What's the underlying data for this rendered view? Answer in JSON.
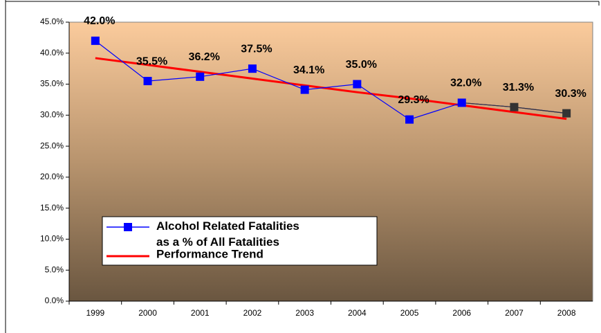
{
  "chart_data": {
    "type": "line",
    "categories": [
      "1999",
      "2000",
      "2001",
      "2002",
      "2003",
      "2004",
      "2005",
      "2006",
      "2007",
      "2008"
    ],
    "series": [
      {
        "name": "Alcohol Related Fatalities as a % of All Fatalities",
        "color": "#0000ff",
        "point_colors": [
          "#0000ff",
          "#0000ff",
          "#0000ff",
          "#0000ff",
          "#0000ff",
          "#0000ff",
          "#0000ff",
          "#0000ff",
          "#333333",
          "#333333"
        ],
        "values": [
          42.0,
          35.5,
          36.2,
          37.5,
          34.1,
          35.0,
          29.3,
          32.0,
          31.3,
          30.3
        ],
        "value_labels": [
          "42.0%",
          "35.5%",
          "36.2%",
          "37.5%",
          "34.1%",
          "35.0%",
          "29.3%",
          "32.0%",
          "31.3%",
          "30.3%"
        ]
      },
      {
        "name": "Performance Trend",
        "color": "#ff0000",
        "values": [
          39.2,
          38.1,
          37.0,
          35.9,
          34.8,
          33.7,
          32.7,
          31.6,
          30.5,
          29.4
        ]
      }
    ],
    "ylim": [
      0,
      45
    ],
    "yticks": [
      {
        "value": 0,
        "label": "0.0%"
      },
      {
        "value": 5,
        "label": "5.0%"
      },
      {
        "value": 10,
        "label": "10.0%"
      },
      {
        "value": 15,
        "label": "15.0%"
      },
      {
        "value": 20,
        "label": "20.0%"
      },
      {
        "value": 25,
        "label": "25.0%"
      },
      {
        "value": 30,
        "label": "30.0%"
      },
      {
        "value": 35,
        "label": "35.0%"
      },
      {
        "value": 40,
        "label": "40.0%"
      },
      {
        "value": 45,
        "label": "45.0%"
      }
    ],
    "grid": false,
    "legend": "bottom-left"
  }
}
